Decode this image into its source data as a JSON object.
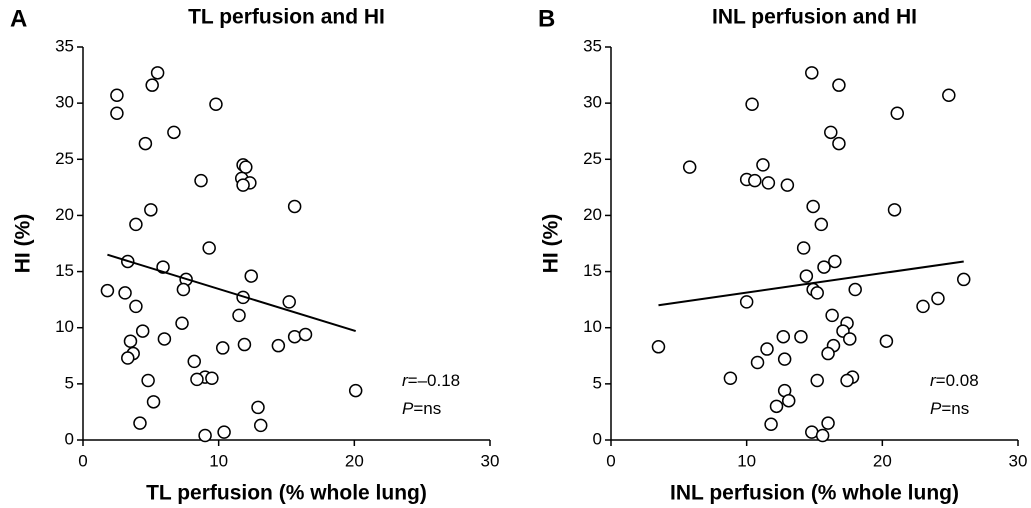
{
  "chart_data": [
    {
      "type": "scatter",
      "panel_label": "A",
      "title": "TL perfusion and HI",
      "x_label": "TL perfusion (% whole lung)",
      "y_label": "HI (%)",
      "xlim": [
        0,
        30
      ],
      "ylim": [
        0,
        35
      ],
      "xticks": [
        0,
        10,
        20,
        30
      ],
      "yticks": [
        0,
        5,
        10,
        15,
        20,
        25,
        30,
        35
      ],
      "color": "#000000",
      "x": [
        2.5,
        2.5,
        5.5,
        5.1,
        9.8,
        6.7,
        4.6,
        11.8,
        12.0,
        11.7,
        8.7,
        12.3,
        11.8,
        5.0,
        15.6,
        3.9,
        9.3,
        3.3,
        5.9,
        7.6,
        12.4,
        7.4,
        1.8,
        3.1,
        11.8,
        15.2,
        3.9,
        11.5,
        7.3,
        4.4,
        3.5,
        6.0,
        15.6,
        16.4,
        11.9,
        14.4,
        10.3,
        3.7,
        3.3,
        8.2,
        9.0,
        9.5,
        8.4,
        4.8,
        20.1,
        5.2,
        12.9,
        4.2,
        13.1,
        10.4,
        9.0
      ],
      "y": [
        30.7,
        29.1,
        32.7,
        31.6,
        29.9,
        27.4,
        26.4,
        24.5,
        24.3,
        23.3,
        23.1,
        22.9,
        22.7,
        20.5,
        20.8,
        19.2,
        17.1,
        15.9,
        15.4,
        14.3,
        14.6,
        13.4,
        13.3,
        13.1,
        12.7,
        12.3,
        11.9,
        11.1,
        10.4,
        9.7,
        8.8,
        9.0,
        9.2,
        9.4,
        8.5,
        8.4,
        8.2,
        7.7,
        7.3,
        7.0,
        5.6,
        5.5,
        5.4,
        5.3,
        4.4,
        3.4,
        2.9,
        1.5,
        1.3,
        0.7,
        0.4
      ],
      "fit": {
        "x": [
          1.8,
          20.1
        ],
        "y": [
          16.5,
          9.7
        ]
      },
      "annotations": [
        [
          "r",
          "=–0.18"
        ],
        [
          "P",
          "=ns"
        ]
      ]
    },
    {
      "type": "scatter",
      "panel_label": "B",
      "title": "INL perfusion and HI",
      "x_label": "INL perfusion (% whole lung)",
      "y_label": "HI (%)",
      "xlim": [
        0,
        30
      ],
      "ylim": [
        0,
        35
      ],
      "xticks": [
        0,
        10,
        20,
        30
      ],
      "yticks": [
        0,
        5,
        10,
        15,
        20,
        25,
        30,
        35
      ],
      "color": "#000000",
      "x": [
        14.8,
        16.8,
        24.9,
        10.4,
        21.1,
        16.2,
        16.8,
        11.2,
        5.8,
        10.0,
        10.6,
        11.6,
        13.0,
        14.9,
        20.9,
        15.5,
        14.2,
        16.5,
        15.7,
        14.4,
        26.0,
        14.9,
        18.0,
        15.2,
        24.1,
        10.0,
        23.0,
        16.3,
        17.4,
        17.1,
        12.7,
        14.0,
        17.6,
        20.3,
        16.4,
        3.5,
        11.5,
        16.0,
        12.8,
        10.8,
        8.8,
        17.8,
        17.4,
        15.2,
        12.8,
        13.1,
        12.2,
        11.8,
        16.0,
        14.8,
        15.6
      ],
      "y": [
        32.7,
        31.6,
        30.7,
        29.9,
        29.1,
        27.4,
        26.4,
        24.5,
        24.3,
        23.2,
        23.1,
        22.9,
        22.7,
        20.8,
        20.5,
        19.2,
        17.1,
        15.9,
        15.4,
        14.6,
        14.3,
        13.4,
        13.4,
        13.1,
        12.6,
        12.3,
        11.9,
        11.1,
        10.4,
        9.7,
        9.2,
        9.2,
        9.0,
        8.8,
        8.4,
        8.3,
        8.1,
        7.7,
        7.2,
        6.9,
        5.5,
        5.6,
        5.3,
        5.3,
        4.4,
        3.5,
        3.0,
        1.4,
        1.5,
        0.7,
        0.4
      ],
      "fit": {
        "x": [
          3.5,
          26.0
        ],
        "y": [
          12.0,
          15.9
        ]
      },
      "annotations": [
        [
          "r",
          "=0.08"
        ],
        [
          "P",
          "=ns"
        ]
      ]
    }
  ]
}
